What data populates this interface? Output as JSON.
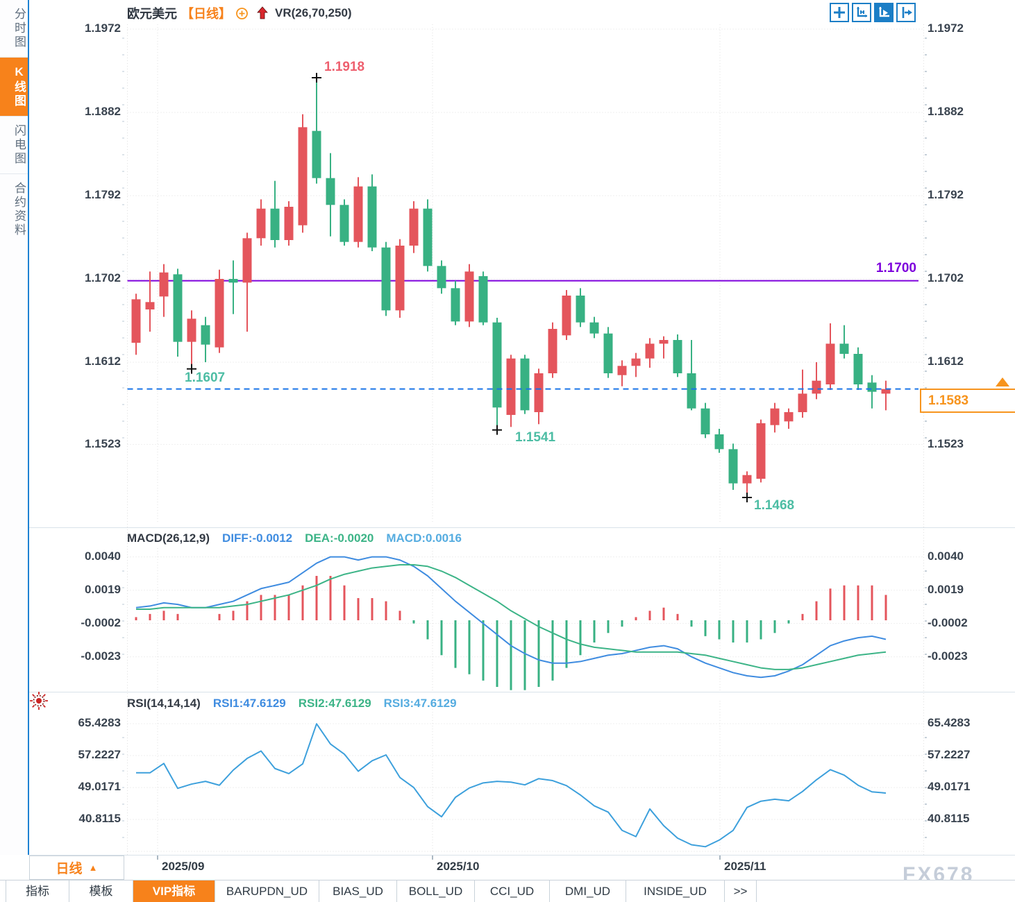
{
  "header": {
    "symbol": "欧元美元",
    "period": "【日线】",
    "indicator": "VR(26,70,250)"
  },
  "sidebar": {
    "items": [
      {
        "label": "分时图",
        "active": false
      },
      {
        "label": "K线图",
        "active": true
      },
      {
        "label": "闪电图",
        "active": false
      },
      {
        "label": "合约资料",
        "active": false
      }
    ]
  },
  "toolbar": {
    "icons": [
      "move-icon",
      "axes-adjust-icon",
      "axes-play-icon",
      "pan-right-icon"
    ]
  },
  "annotations": {
    "high_label": "1.1918",
    "low1_label": "1.1607",
    "low2_label": "1.1541",
    "low3_label": "1.1468",
    "hline_label": "1.1700",
    "last_price_label": "1.1583"
  },
  "macd_header": {
    "title": "MACD(26,12,9)",
    "diff": "DIFF:-0.0012",
    "dea": "DEA:-0.0020",
    "macd": "MACD:0.0016"
  },
  "rsi_header": {
    "title": "RSI(14,14,14)",
    "rsi1": "RSI1:47.6129",
    "rsi2": "RSI2:47.6129",
    "rsi3": "RSI3:47.6129"
  },
  "x_axis": {
    "dates": [
      "2025/09",
      "2025/10",
      "2025/11"
    ]
  },
  "period_box": {
    "label": "日线",
    "arrow": "▲"
  },
  "bottom_tabs": {
    "items": [
      {
        "label": "指标",
        "active": false
      },
      {
        "label": "模板",
        "active": false
      },
      {
        "label": "VIP指标",
        "active": true
      },
      {
        "label": "BARUPDN_UD",
        "active": false
      },
      {
        "label": "BIAS_UD",
        "active": false
      },
      {
        "label": "BOLL_UD",
        "active": false
      },
      {
        "label": "CCI_UD",
        "active": false
      },
      {
        "label": "DMI_UD",
        "active": false
      },
      {
        "label": "INSIDE_UD",
        "active": false
      },
      {
        "label": ">>",
        "active": false
      }
    ]
  },
  "watermark": "FX678",
  "colors": {
    "up": "#e4555c",
    "down": "#38b183",
    "diff_line": "#3f8ce0",
    "dea_line": "#3cb487",
    "rsi_line": "#3da0dc",
    "purple_line": "#7d00dc",
    "dashed_blue": "#1874e8",
    "orange": "#f7821b",
    "grid": "#e0e0e0",
    "marker": "#111111"
  },
  "chart_data": [
    {
      "type": "candlestick",
      "title": "欧元美元 日线",
      "convention": "red-up-green-down",
      "y_ticks": [
        1.1972,
        1.1882,
        1.1792,
        1.1702,
        1.1612,
        1.1523
      ],
      "x_tick_dates": [
        "2025/09",
        "2025/10",
        "2025/11"
      ],
      "hline": 1.17,
      "last_price": 1.1583,
      "markers": {
        "high": {
          "index": 13,
          "price": 1.1918
        },
        "lows": [
          {
            "index": 4,
            "price": 1.1607
          },
          {
            "index": 26,
            "price": 1.1541
          },
          {
            "index": 44,
            "price": 1.1468
          }
        ]
      },
      "ohlc": [
        [
          1.1633,
          1.1686,
          1.162,
          1.168
        ],
        [
          1.1669,
          1.171,
          1.1645,
          1.1677
        ],
        [
          1.1683,
          1.1718,
          1.1661,
          1.1709
        ],
        [
          1.1707,
          1.1713,
          1.1618,
          1.1634
        ],
        [
          1.1634,
          1.1668,
          1.1607,
          1.1659
        ],
        [
          1.1652,
          1.1661,
          1.1612,
          1.1631
        ],
        [
          1.1628,
          1.1712,
          1.1622,
          1.1702
        ],
        [
          1.1702,
          1.1722,
          1.1664,
          1.1698
        ],
        [
          1.1698,
          1.1752,
          1.1645,
          1.1746
        ],
        [
          1.1746,
          1.1788,
          1.1738,
          1.1778
        ],
        [
          1.1778,
          1.1808,
          1.1736,
          1.1744
        ],
        [
          1.1744,
          1.1786,
          1.1738,
          1.178
        ],
        [
          1.176,
          1.188,
          1.1752,
          1.1866
        ],
        [
          1.1862,
          1.1918,
          1.1805,
          1.1811
        ],
        [
          1.1811,
          1.1838,
          1.1748,
          1.1782
        ],
        [
          1.1782,
          1.1788,
          1.1738,
          1.1742
        ],
        [
          1.1742,
          1.1812,
          1.1736,
          1.1802
        ],
        [
          1.1802,
          1.1815,
          1.1732,
          1.1736
        ],
        [
          1.1736,
          1.1742,
          1.1662,
          1.1668
        ],
        [
          1.1668,
          1.1745,
          1.166,
          1.1738
        ],
        [
          1.1738,
          1.1786,
          1.173,
          1.1778
        ],
        [
          1.1778,
          1.1788,
          1.171,
          1.1716
        ],
        [
          1.1716,
          1.1722,
          1.1686,
          1.1692
        ],
        [
          1.1692,
          1.17,
          1.1652,
          1.1656
        ],
        [
          1.1656,
          1.1718,
          1.165,
          1.171
        ],
        [
          1.1705,
          1.171,
          1.1652,
          1.1655
        ],
        [
          1.1655,
          1.166,
          1.1541,
          1.1563
        ],
        [
          1.1555,
          1.162,
          1.1542,
          1.1616
        ],
        [
          1.1616,
          1.162,
          1.1556,
          1.156
        ],
        [
          1.1558,
          1.1605,
          1.1545,
          1.16
        ],
        [
          1.16,
          1.1655,
          1.1595,
          1.1648
        ],
        [
          1.1641,
          1.169,
          1.1636,
          1.1684
        ],
        [
          1.1684,
          1.1692,
          1.165,
          1.1655
        ],
        [
          1.1655,
          1.1661,
          1.1638,
          1.1643
        ],
        [
          1.1643,
          1.165,
          1.1595,
          1.16
        ],
        [
          1.1598,
          1.1614,
          1.1586,
          1.1608
        ],
        [
          1.1608,
          1.1622,
          1.1596,
          1.1616
        ],
        [
          1.1616,
          1.1638,
          1.1606,
          1.1632
        ],
        [
          1.1632,
          1.164,
          1.1616,
          1.1636
        ],
        [
          1.1636,
          1.1642,
          1.1596,
          1.16
        ],
        [
          1.16,
          1.1636,
          1.156,
          1.1562
        ],
        [
          1.1562,
          1.1568,
          1.153,
          1.1534
        ],
        [
          1.1534,
          1.154,
          1.1514,
          1.1518
        ],
        [
          1.1518,
          1.1524,
          1.1474,
          1.1481
        ],
        [
          1.1481,
          1.1494,
          1.1468,
          1.149
        ],
        [
          1.1486,
          1.155,
          1.1482,
          1.1546
        ],
        [
          1.1544,
          1.1568,
          1.1536,
          1.1562
        ],
        [
          1.1548,
          1.1562,
          1.154,
          1.1558
        ],
        [
          1.1558,
          1.1604,
          1.1552,
          1.1578
        ],
        [
          1.1578,
          1.1612,
          1.1572,
          1.1592
        ],
        [
          1.1588,
          1.1654,
          1.1582,
          1.1632
        ],
        [
          1.1632,
          1.1652,
          1.1616,
          1.1621
        ],
        [
          1.1621,
          1.1628,
          1.1582,
          1.1588
        ],
        [
          1.159,
          1.1598,
          1.1562,
          1.158
        ],
        [
          1.1578,
          1.1592,
          1.156,
          1.1583
        ]
      ]
    },
    {
      "type": "macd",
      "params": "MACD(26,12,9)",
      "y_ticks": [
        0.004,
        0.0019,
        -0.0002,
        -0.0023
      ],
      "last": {
        "diff": -0.0012,
        "dea": -0.002,
        "macd": 0.0016
      },
      "histogram_rule": "2*(diff-dea)",
      "diff": [
        0.0008,
        0.0009,
        0.0011,
        0.001,
        0.0008,
        0.0008,
        0.001,
        0.0012,
        0.0016,
        0.002,
        0.0022,
        0.0024,
        0.003,
        0.0036,
        0.004,
        0.004,
        0.0038,
        0.004,
        0.004,
        0.0038,
        0.0034,
        0.0028,
        0.002,
        0.0012,
        0.0005,
        -0.0002,
        -0.0009,
        -0.0016,
        -0.0021,
        -0.0025,
        -0.0027,
        -0.0027,
        -0.0026,
        -0.0024,
        -0.0022,
        -0.0021,
        -0.0019,
        -0.0017,
        -0.0016,
        -0.0018,
        -0.0023,
        -0.0027,
        -0.003,
        -0.0033,
        -0.0035,
        -0.0036,
        -0.0035,
        -0.0032,
        -0.0028,
        -0.0022,
        -0.0016,
        -0.0013,
        -0.0011,
        -0.001,
        -0.0012
      ],
      "dea": [
        0.0007,
        0.0007,
        0.0008,
        0.0008,
        0.0008,
        0.0008,
        0.0008,
        0.0009,
        0.001,
        0.0012,
        0.0014,
        0.0016,
        0.0019,
        0.0022,
        0.0026,
        0.0029,
        0.0031,
        0.0033,
        0.0034,
        0.0035,
        0.0035,
        0.0034,
        0.0031,
        0.0027,
        0.0022,
        0.0017,
        0.0012,
        0.0006,
        0.0001,
        -0.0004,
        -0.0008,
        -0.0012,
        -0.0015,
        -0.0017,
        -0.0018,
        -0.0019,
        -0.002,
        -0.002,
        -0.002,
        -0.002,
        -0.0021,
        -0.0022,
        -0.0024,
        -0.0026,
        -0.0028,
        -0.003,
        -0.0031,
        -0.0031,
        -0.003,
        -0.0028,
        -0.0026,
        -0.0024,
        -0.0022,
        -0.0021,
        -0.002
      ]
    },
    {
      "type": "line",
      "name": "RSI(14,14,14)",
      "y_ticks": [
        65.4283,
        57.2227,
        49.0171,
        40.8115
      ],
      "last": 47.6129,
      "values": [
        52.8,
        52.8,
        55.2,
        48.8,
        49.9,
        50.6,
        49.6,
        53.5,
        56.5,
        58.4,
        53.9,
        52.6,
        55.1,
        65.4,
        60.2,
        57.6,
        53.2,
        55.9,
        57.4,
        51.6,
        49.0,
        44.1,
        41.5,
        46.5,
        48.9,
        50.2,
        50.6,
        50.4,
        49.7,
        51.3,
        50.8,
        49.5,
        47.1,
        44.3,
        42.7,
        38.0,
        36.4,
        43.5,
        39.2,
        36.0,
        34.3,
        33.8,
        35.5,
        38.0,
        43.9,
        45.5,
        46.0,
        45.6,
        48.0,
        51.0,
        53.6,
        52.2,
        49.6,
        47.9,
        47.6
      ]
    }
  ]
}
